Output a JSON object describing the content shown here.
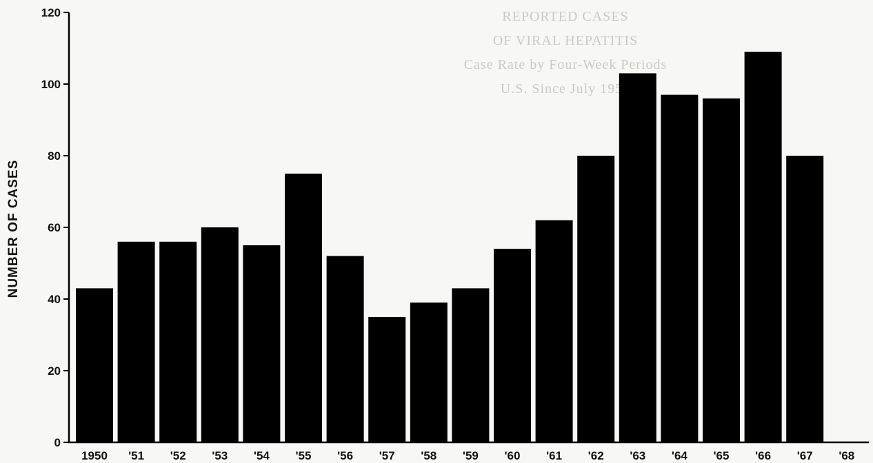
{
  "chart_data": {
    "type": "bar",
    "title": "",
    "xlabel": "",
    "ylabel": "NUMBER OF CASES",
    "ylim": [
      0,
      120
    ],
    "yticks": [
      0,
      20,
      40,
      60,
      80,
      100,
      120
    ],
    "categories": [
      "1950",
      "'51",
      "'52",
      "'53",
      "'54",
      "'55",
      "'56",
      "'57",
      "'58",
      "'59",
      "'60",
      "'61",
      "'62",
      "'63",
      "'64",
      "'65",
      "'66",
      "'67",
      "'68"
    ],
    "values": [
      43,
      56,
      56,
      60,
      55,
      75,
      52,
      35,
      39,
      43,
      54,
      62,
      80,
      103,
      97,
      96,
      109,
      80,
      null
    ],
    "bar_color": "#000000",
    "grid": false,
    "legend": "none"
  },
  "background_print": {
    "lines": [
      "REPORTED CASES",
      "OF VIRAL HEPATITIS",
      "Case Rate by Four-Week Periods",
      "U.S. Since July 1952"
    ]
  }
}
